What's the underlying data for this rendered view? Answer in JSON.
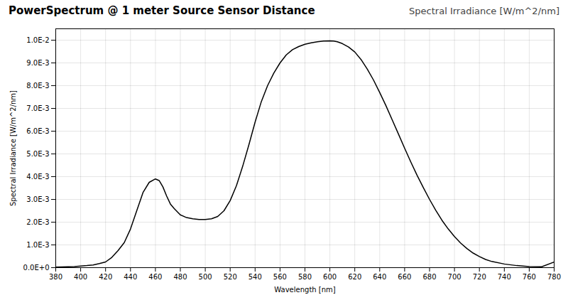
{
  "chart_data": {
    "type": "line",
    "title": "PowerSpectrum @ 1 meter Source Sensor Distance",
    "subtitle": "Spectral Irradiance [W/m^2/nm]",
    "xlabel": "Wavelength [nm]",
    "ylabel": "Spectral Irradiance [W/m^2/nm]",
    "x": [
      380,
      385,
      390,
      395,
      400,
      405,
      410,
      415,
      420,
      425,
      430,
      435,
      440,
      445,
      450,
      455,
      460,
      463,
      466,
      469,
      472,
      475,
      480,
      485,
      490,
      495,
      500,
      505,
      510,
      515,
      520,
      525,
      530,
      535,
      540,
      545,
      550,
      555,
      560,
      565,
      570,
      575,
      580,
      585,
      590,
      595,
      600,
      603,
      606,
      610,
      615,
      620,
      625,
      630,
      635,
      640,
      645,
      650,
      655,
      660,
      665,
      670,
      675,
      680,
      685,
      690,
      695,
      700,
      705,
      710,
      715,
      720,
      725,
      730,
      740,
      750,
      760,
      770,
      780
    ],
    "values": [
      2e-05,
      3e-05,
      4e-05,
      5e-05,
      7e-05,
      9e-05,
      0.00012,
      0.00018,
      0.00025,
      0.00045,
      0.00075,
      0.0011,
      0.0017,
      0.0025,
      0.0033,
      0.00375,
      0.0039,
      0.00383,
      0.00355,
      0.00315,
      0.0028,
      0.0026,
      0.00232,
      0.0022,
      0.00215,
      0.00212,
      0.00212,
      0.00215,
      0.00225,
      0.0025,
      0.00295,
      0.0036,
      0.00445,
      0.0054,
      0.0064,
      0.0073,
      0.008,
      0.00855,
      0.009,
      0.00935,
      0.00958,
      0.00972,
      0.00982,
      0.00988,
      0.00993,
      0.00996,
      0.00997,
      0.00996,
      0.00993,
      0.00985,
      0.0097,
      0.00948,
      0.00915,
      0.00873,
      0.00825,
      0.0077,
      0.00712,
      0.0065,
      0.00588,
      0.00525,
      0.00464,
      0.00406,
      0.00352,
      0.003,
      0.00252,
      0.00208,
      0.0017,
      0.00137,
      0.00108,
      0.00084,
      0.00064,
      0.00049,
      0.00036,
      0.00027,
      0.00016,
      9e-05,
      5e-05,
      4e-05,
      0.00025
    ],
    "color": "#000000",
    "xlim": [
      380,
      780
    ],
    "ylim": [
      0.0,
      0.0105
    ],
    "xticks": [
      380,
      400,
      420,
      440,
      460,
      480,
      500,
      520,
      540,
      560,
      580,
      600,
      620,
      640,
      660,
      680,
      700,
      720,
      740,
      760,
      780
    ],
    "yticks": [
      {
        "value": 0.0,
        "label": "0.0E+0"
      },
      {
        "value": 0.001,
        "label": "1.0E-3"
      },
      {
        "value": 0.002,
        "label": "2.0E-3"
      },
      {
        "value": 0.003,
        "label": "3.0E-3"
      },
      {
        "value": 0.004,
        "label": "4.0E-3"
      },
      {
        "value": 0.005,
        "label": "5.0E-3"
      },
      {
        "value": 0.006,
        "label": "6.0E-3"
      },
      {
        "value": 0.007,
        "label": "7.0E-3"
      },
      {
        "value": 0.008,
        "label": "8.0E-3"
      },
      {
        "value": 0.009,
        "label": "9.0E-3"
      },
      {
        "value": 0.01,
        "label": "1.0E-2"
      }
    ],
    "grid": true
  }
}
